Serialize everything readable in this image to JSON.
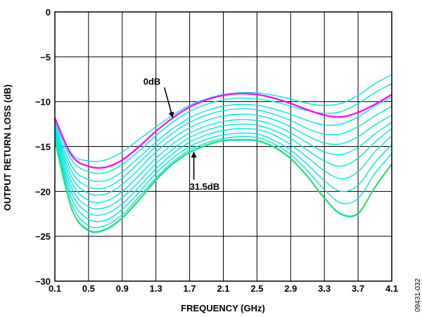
{
  "chart_data": {
    "type": "line",
    "xlabel": "FREQUENCY (GHz)",
    "ylabel": "OUTPUT RETURN LOSS (dB)",
    "xlim": [
      0.1,
      4.1
    ],
    "ylim": [
      -30,
      0
    ],
    "grid": true,
    "x_ticks": [
      "0.1",
      "0.5",
      "0.9",
      "1.3",
      "1.7",
      "2.1",
      "2.5",
      "2.9",
      "3.3",
      "3.7",
      "4.1"
    ],
    "y_ticks": [
      "0",
      "−5",
      "−10",
      "−15",
      "−20",
      "−25",
      "−30"
    ],
    "x": [
      0.1,
      0.3,
      0.5,
      0.7,
      0.9,
      1.1,
      1.3,
      1.5,
      1.7,
      1.9,
      2.1,
      2.3,
      2.5,
      2.7,
      2.9,
      3.1,
      3.3,
      3.5,
      3.7,
      3.9,
      4.1
    ],
    "colors": {
      "highlight": "#ff00ff",
      "family": "#00e5e5",
      "lowest": "#33dd33",
      "axis": "#000000"
    },
    "series": [
      {
        "name": "0dB",
        "color": "#ff00ff",
        "values": [
          -11.8,
          -16.0,
          -17.2,
          -17.3,
          -16.5,
          -15.0,
          -13.3,
          -11.8,
          -10.6,
          -9.8,
          -9.3,
          -9.1,
          -9.2,
          -9.6,
          -10.2,
          -10.9,
          -11.5,
          -11.7,
          -11.2,
          -10.3,
          -9.2
        ]
      },
      {
        "color": "#00e5e5",
        "values": [
          -12.0,
          -15.8,
          -16.6,
          -16.5,
          -15.6,
          -14.2,
          -12.8,
          -11.5,
          -10.4,
          -9.7,
          -9.2,
          -9.0,
          -9.0,
          -9.3,
          -9.7,
          -10.2,
          -10.4,
          -10.2,
          -9.3,
          -8.0,
          -7.0
        ]
      },
      {
        "color": "#00e5e5",
        "values": [
          -12.2,
          -16.5,
          -17.8,
          -17.9,
          -17.0,
          -15.5,
          -13.8,
          -12.3,
          -11.1,
          -10.3,
          -9.8,
          -9.6,
          -9.7,
          -10.0,
          -10.5,
          -11.0,
          -11.3,
          -11.1,
          -10.2,
          -9.0,
          -8.0
        ]
      },
      {
        "color": "#00e5e5",
        "values": [
          -12.5,
          -17.2,
          -18.7,
          -18.8,
          -17.8,
          -16.2,
          -14.5,
          -13.0,
          -11.8,
          -11.0,
          -10.5,
          -10.3,
          -10.4,
          -10.8,
          -11.4,
          -12.1,
          -12.6,
          -12.5,
          -11.7,
          -10.5,
          -9.5
        ]
      },
      {
        "color": "#00e5e5",
        "values": [
          -12.8,
          -17.8,
          -19.5,
          -19.6,
          -18.5,
          -16.8,
          -15.0,
          -13.5,
          -12.3,
          -11.5,
          -11.0,
          -10.8,
          -10.9,
          -11.4,
          -12.1,
          -13.0,
          -13.6,
          -13.6,
          -12.8,
          -11.6,
          -10.5
        ]
      },
      {
        "color": "#00e5e5",
        "values": [
          -13.0,
          -18.4,
          -20.2,
          -20.3,
          -19.2,
          -17.5,
          -15.6,
          -14.1,
          -12.9,
          -12.1,
          -11.6,
          -11.4,
          -11.5,
          -12.0,
          -12.8,
          -13.8,
          -14.6,
          -14.7,
          -13.9,
          -12.6,
          -11.5
        ]
      },
      {
        "color": "#00e5e5",
        "values": [
          -13.2,
          -19.0,
          -21.0,
          -21.1,
          -20.0,
          -18.2,
          -16.3,
          -14.7,
          -13.5,
          -12.7,
          -12.2,
          -12.0,
          -12.1,
          -12.6,
          -13.5,
          -14.6,
          -15.6,
          -15.9,
          -15.1,
          -13.6,
          -12.3
        ]
      },
      {
        "color": "#00e5e5",
        "values": [
          -13.5,
          -19.6,
          -21.7,
          -21.8,
          -20.7,
          -18.9,
          -16.9,
          -15.3,
          -14.0,
          -13.2,
          -12.7,
          -12.5,
          -12.6,
          -13.2,
          -14.1,
          -15.4,
          -16.6,
          -17.2,
          -16.3,
          -14.5,
          -13.0
        ]
      },
      {
        "color": "#00e5e5",
        "values": [
          -13.8,
          -20.2,
          -22.4,
          -22.5,
          -21.4,
          -19.5,
          -17.5,
          -15.8,
          -14.5,
          -13.7,
          -13.2,
          -13.0,
          -13.1,
          -13.7,
          -14.8,
          -16.2,
          -17.7,
          -18.6,
          -17.8,
          -15.6,
          -13.8
        ]
      },
      {
        "color": "#00e5e5",
        "values": [
          -14.0,
          -20.8,
          -23.1,
          -23.2,
          -22.0,
          -20.1,
          -18.0,
          -16.3,
          -15.0,
          -14.2,
          -13.7,
          -13.5,
          -13.6,
          -14.3,
          -15.4,
          -17.0,
          -18.8,
          -20.0,
          -19.3,
          -16.8,
          -14.8
        ]
      },
      {
        "color": "#00e5e5",
        "values": [
          -14.2,
          -21.4,
          -23.8,
          -23.8,
          -22.6,
          -20.6,
          -18.5,
          -16.7,
          -15.4,
          -14.6,
          -14.1,
          -13.9,
          -14.0,
          -14.7,
          -15.9,
          -17.7,
          -19.8,
          -21.3,
          -20.8,
          -18.0,
          -15.8
        ]
      },
      {
        "color": "#00e5e5",
        "values": [
          -14.4,
          -22.0,
          -24.4,
          -24.3,
          -23.0,
          -21.0,
          -18.8,
          -17.0,
          -15.7,
          -14.9,
          -14.4,
          -14.3,
          -14.4,
          -15.1,
          -16.4,
          -18.4,
          -20.8,
          -22.6,
          -22.5,
          -19.6,
          -17.0
        ]
      },
      {
        "name": "31.5dB",
        "color": "#33dd33",
        "values": [
          -14.4,
          -21.9,
          -24.3,
          -24.2,
          -22.9,
          -20.9,
          -18.7,
          -16.9,
          -15.6,
          -14.8,
          -14.3,
          -14.2,
          -14.3,
          -15.0,
          -16.3,
          -18.3,
          -20.7,
          -22.5,
          -22.4,
          -19.5,
          -16.9
        ]
      }
    ],
    "annotations": [
      {
        "text": "0dB",
        "x": 1.5,
        "y": -11.8,
        "label_x": 1.15,
        "label_y": -8.1
      },
      {
        "text": "31.5dB",
        "x": 1.75,
        "y": -15.6,
        "label_x": 1.7,
        "label_y": -19.8
      }
    ]
  },
  "figure_id": "09431-032"
}
